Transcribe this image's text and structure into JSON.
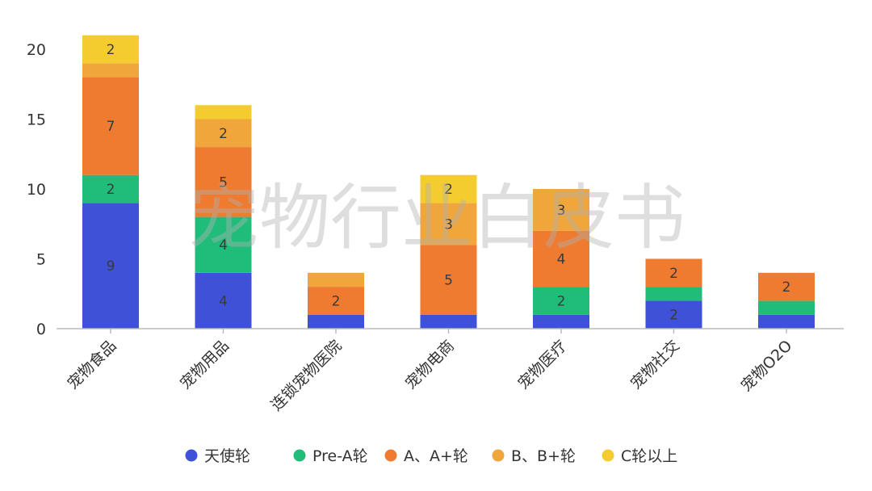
{
  "watermark": "宠物行业白皮书",
  "chart_data": {
    "type": "bar",
    "stacked": true,
    "categories": [
      "宠物食品",
      "宠物用品",
      "连锁宠物医院",
      "宠物电商",
      "宠物医疗",
      "宠物社交",
      "宠物O2O"
    ],
    "series": [
      {
        "name": "天使轮",
        "color": "#3f51d6",
        "values": [
          9,
          4,
          1,
          1,
          1,
          2,
          1
        ]
      },
      {
        "name": "Pre-A轮",
        "color": "#20bd7a",
        "values": [
          2,
          4,
          0,
          0,
          2,
          1,
          1
        ]
      },
      {
        "name": "A、A+轮",
        "color": "#ee7b30",
        "values": [
          7,
          5,
          2,
          5,
          4,
          2,
          2
        ]
      },
      {
        "name": "B、B+轮",
        "color": "#f0a63a",
        "values": [
          1,
          2,
          1,
          3,
          3,
          0,
          0
        ]
      },
      {
        "name": "C轮以上",
        "color": "#f5cc2f",
        "values": [
          2,
          1,
          0,
          2,
          0,
          0,
          0
        ]
      }
    ],
    "data_labels": [
      {
        "series": 0,
        "category": 0,
        "text": "9"
      },
      {
        "series": 1,
        "category": 0,
        "text": "2"
      },
      {
        "series": 2,
        "category": 0,
        "text": "7"
      },
      {
        "series": 4,
        "category": 0,
        "text": "2"
      },
      {
        "series": 0,
        "category": 1,
        "text": "4"
      },
      {
        "series": 1,
        "category": 1,
        "text": "4"
      },
      {
        "series": 2,
        "category": 1,
        "text": "5"
      },
      {
        "series": 3,
        "category": 1,
        "text": "2"
      },
      {
        "series": 2,
        "category": 2,
        "text": "2"
      },
      {
        "series": 2,
        "category": 3,
        "text": "5"
      },
      {
        "series": 3,
        "category": 3,
        "text": "3"
      },
      {
        "series": 4,
        "category": 3,
        "text": "2"
      },
      {
        "series": 1,
        "category": 4,
        "text": "2"
      },
      {
        "series": 2,
        "category": 4,
        "text": "4"
      },
      {
        "series": 3,
        "category": 4,
        "text": "3"
      },
      {
        "series": 0,
        "category": 5,
        "text": "2"
      },
      {
        "series": 2,
        "category": 5,
        "text": "2"
      },
      {
        "series": 2,
        "category": 6,
        "text": "2"
      }
    ],
    "yticks": [
      0,
      5,
      10,
      15,
      20
    ],
    "ylim": [
      0,
      22
    ],
    "grid": false,
    "legend_position": "bottom",
    "title": "",
    "xlabel": "",
    "ylabel": ""
  }
}
